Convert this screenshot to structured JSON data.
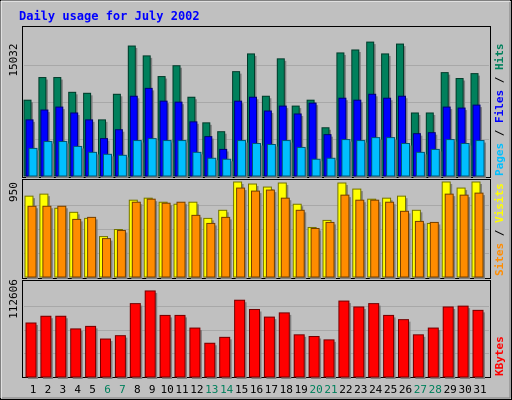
{
  "chart_data": [
    {
      "type": "bar",
      "title": "Daily usage for July 2002",
      "panel": "top",
      "categories": [
        "1",
        "2",
        "3",
        "4",
        "5",
        "6",
        "7",
        "8",
        "9",
        "10",
        "11",
        "12",
        "13",
        "14",
        "15",
        "16",
        "17",
        "18",
        "19",
        "20",
        "21",
        "22",
        "23",
        "24",
        "25",
        "26",
        "27",
        "28",
        "29",
        "30",
        "31"
      ],
      "y_tick_label": "15032",
      "y_tick_value": 15032,
      "ylim": [
        0,
        15032
      ],
      "series": [
        {
          "name": "Hits",
          "color": "#00805c",
          "values": [
            7700,
            10000,
            10000,
            8500,
            8400,
            5700,
            8300,
            13200,
            12200,
            10100,
            11200,
            8000,
            5400,
            4500,
            10600,
            12400,
            8100,
            11900,
            7100,
            7700,
            4900,
            12500,
            12800,
            13600,
            12400,
            13400,
            6400,
            6400,
            10500,
            9900,
            10400
          ]
        },
        {
          "name": "Files",
          "color": "#0000ff",
          "values": [
            5700,
            6700,
            7000,
            6400,
            5700,
            3800,
            4700,
            8100,
            8900,
            7600,
            7500,
            5500,
            4000,
            2700,
            7600,
            8000,
            6600,
            7100,
            6300,
            7400,
            4200,
            7900,
            7700,
            8300,
            7900,
            8100,
            4300,
            4400,
            7000,
            6900,
            7200
          ]
        },
        {
          "name": "Pages",
          "color": "#00bfff",
          "values": [
            2800,
            3500,
            3500,
            3000,
            2400,
            2200,
            2100,
            3600,
            3800,
            3600,
            3600,
            2400,
            1800,
            1700,
            3600,
            3300,
            3200,
            3600,
            2900,
            1700,
            1800,
            3700,
            3600,
            3900,
            3900,
            3300,
            2400,
            2700,
            3700,
            3300,
            3600
          ]
        }
      ]
    },
    {
      "type": "bar",
      "panel": "middle",
      "categories": [
        "1",
        "2",
        "3",
        "4",
        "5",
        "6",
        "7",
        "8",
        "9",
        "10",
        "11",
        "12",
        "13",
        "14",
        "15",
        "16",
        "17",
        "18",
        "19",
        "20",
        "21",
        "22",
        "23",
        "24",
        "25",
        "26",
        "27",
        "28",
        "29",
        "30",
        "31"
      ],
      "y_tick_label": "950",
      "y_tick_value": 950,
      "ylim": [
        0,
        950
      ],
      "series": [
        {
          "name": "Visits",
          "color": "#ffff00",
          "values": [
            800,
            820,
            680,
            640,
            580,
            400,
            470,
            760,
            780,
            740,
            720,
            740,
            580,
            660,
            940,
            920,
            890,
            930,
            720,
            490,
            560,
            930,
            870,
            770,
            780,
            800,
            660,
            530,
            940,
            880,
            940
          ]
        },
        {
          "name": "Sites",
          "color": "#ff8c00",
          "values": [
            700,
            700,
            700,
            570,
            590,
            380,
            460,
            740,
            770,
            730,
            740,
            610,
            530,
            590,
            880,
            850,
            860,
            780,
            660,
            480,
            540,
            810,
            760,
            760,
            740,
            650,
            550,
            540,
            820,
            810,
            830
          ]
        }
      ]
    },
    {
      "type": "bar",
      "panel": "bottom",
      "categories": [
        "1",
        "2",
        "3",
        "4",
        "5",
        "6",
        "7",
        "8",
        "9",
        "10",
        "11",
        "12",
        "13",
        "14",
        "15",
        "16",
        "17",
        "18",
        "19",
        "20",
        "21",
        "22",
        "23",
        "24",
        "25",
        "26",
        "27",
        "28",
        "29",
        "30",
        "31"
      ],
      "y_tick_label": "112606",
      "y_tick_value": 112606,
      "ylim": [
        0,
        112606
      ],
      "series": [
        {
          "name": "KBytes",
          "color": "#ff0000",
          "values": [
            64000,
            72000,
            72000,
            57000,
            60000,
            45000,
            49000,
            87000,
            102000,
            73000,
            73000,
            58000,
            40000,
            47000,
            91000,
            80000,
            71000,
            76000,
            50000,
            48000,
            44000,
            90000,
            83000,
            87000,
            73000,
            68000,
            50000,
            58000,
            83000,
            84000,
            79000
          ]
        }
      ]
    }
  ],
  "weekend_days": [
    "6",
    "7",
    "13",
    "14",
    "20",
    "21",
    "27",
    "28"
  ],
  "colors": {
    "background": "#c0c0c0",
    "title": "#0000ff",
    "weekday_label": "#000000",
    "weekend_label": "#00805c"
  }
}
